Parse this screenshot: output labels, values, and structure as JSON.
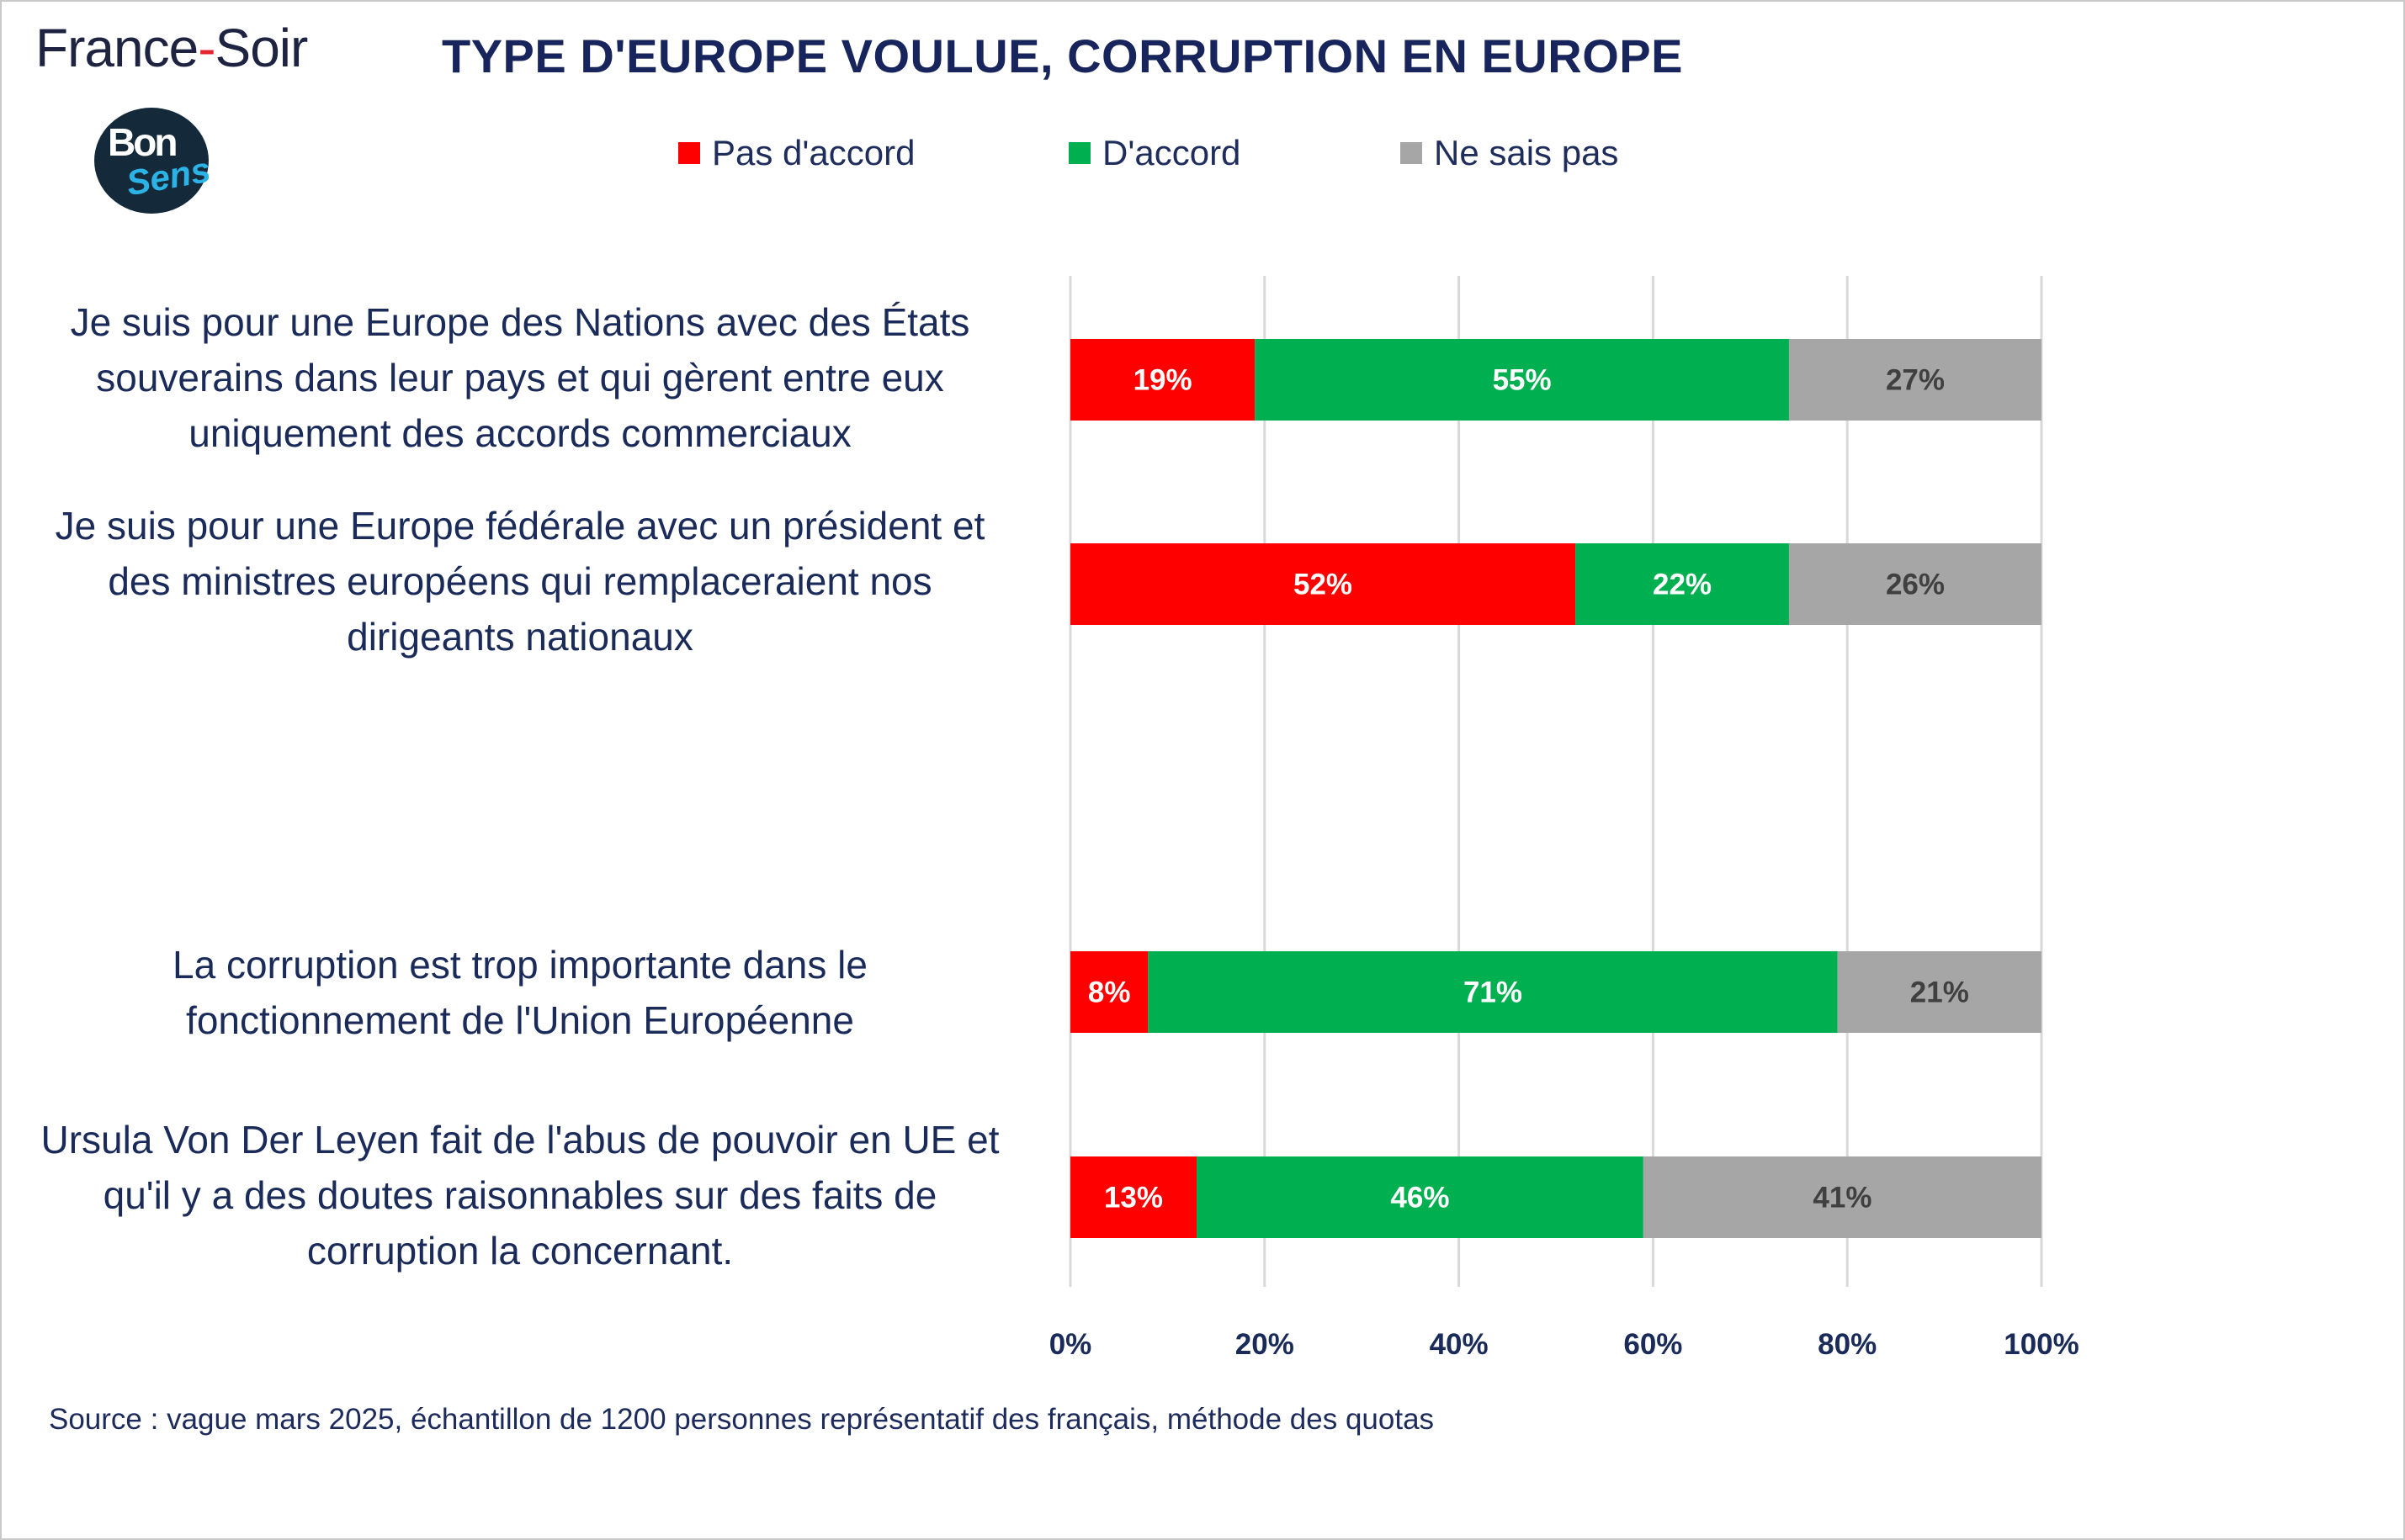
{
  "brand": {
    "name_part1": "France",
    "name_dash": "-",
    "name_part2": "Soir"
  },
  "badge": {
    "line1": "Bon",
    "line2": "Sens"
  },
  "colors": {
    "disagree": "#ff0000",
    "agree": "#00b050",
    "dontknow": "#a6a6a6"
  },
  "chart_data": {
    "type": "bar",
    "orientation": "horizontal",
    "stacked": true,
    "title": "TYPE D'EUROPE VOULUE, CORRUPTION EN EUROPE",
    "categories": [
      "Je suis pour une Europe des Nations avec des États souverains dans leur pays et qui gèrent entre eux uniquement des accords commerciaux",
      "Je suis pour une Europe fédérale avec un président et des ministres européens qui remplaceraient nos dirigeants nationaux",
      "La corruption est trop importante dans le fonctionnement de l'Union Européenne",
      "Ursula Von Der Leyen fait de l'abus de pouvoir en UE et qu'il y a des doutes raisonnables sur des faits de corruption la concernant."
    ],
    "category_lines": [
      [
        "Je suis pour une Europe des Nations avec des États",
        "souverains dans leur pays et qui gèrent entre eux",
        "uniquement des accords commerciaux"
      ],
      [
        "Je suis pour une Europe fédérale avec un président et",
        "des ministres européens qui remplaceraient nos",
        "dirigeants nationaux"
      ],
      [
        "La corruption est trop importante dans le",
        "fonctionnement de l'Union Européenne"
      ],
      [
        "Ursula Von Der Leyen fait de l'abus de pouvoir en UE et",
        "qu'il y a des doutes raisonnables sur des faits de",
        "corruption la concernant."
      ]
    ],
    "series": [
      {
        "name": "Pas d'accord",
        "color": "#ff0000",
        "label_color": "#ffffff",
        "values": [
          19,
          52,
          8,
          13
        ],
        "labels": [
          "19%",
          "52%",
          "8%",
          "13%"
        ]
      },
      {
        "name": "D'accord",
        "color": "#00b050",
        "label_color": "#ffffff",
        "values": [
          55,
          22,
          71,
          46
        ],
        "labels": [
          "55%",
          "22%",
          "71%",
          "46%"
        ]
      },
      {
        "name": "Ne sais pas",
        "color": "#a6a6a6",
        "label_color": "#404040",
        "values": [
          27,
          26,
          21,
          41
        ],
        "labels": [
          "27%",
          "26%",
          "21%",
          "41%"
        ]
      }
    ],
    "xlim": [
      0,
      100
    ],
    "xticks": [
      0,
      20,
      40,
      60,
      80,
      100
    ],
    "xtick_labels": [
      "0%",
      "20%",
      "40%",
      "60%",
      "80%",
      "100%"
    ],
    "grid": "vertical",
    "legend": "top-center"
  },
  "source": "Source : vague mars 2025, échantillon de 1200 personnes représentatif des français, méthode des quotas"
}
